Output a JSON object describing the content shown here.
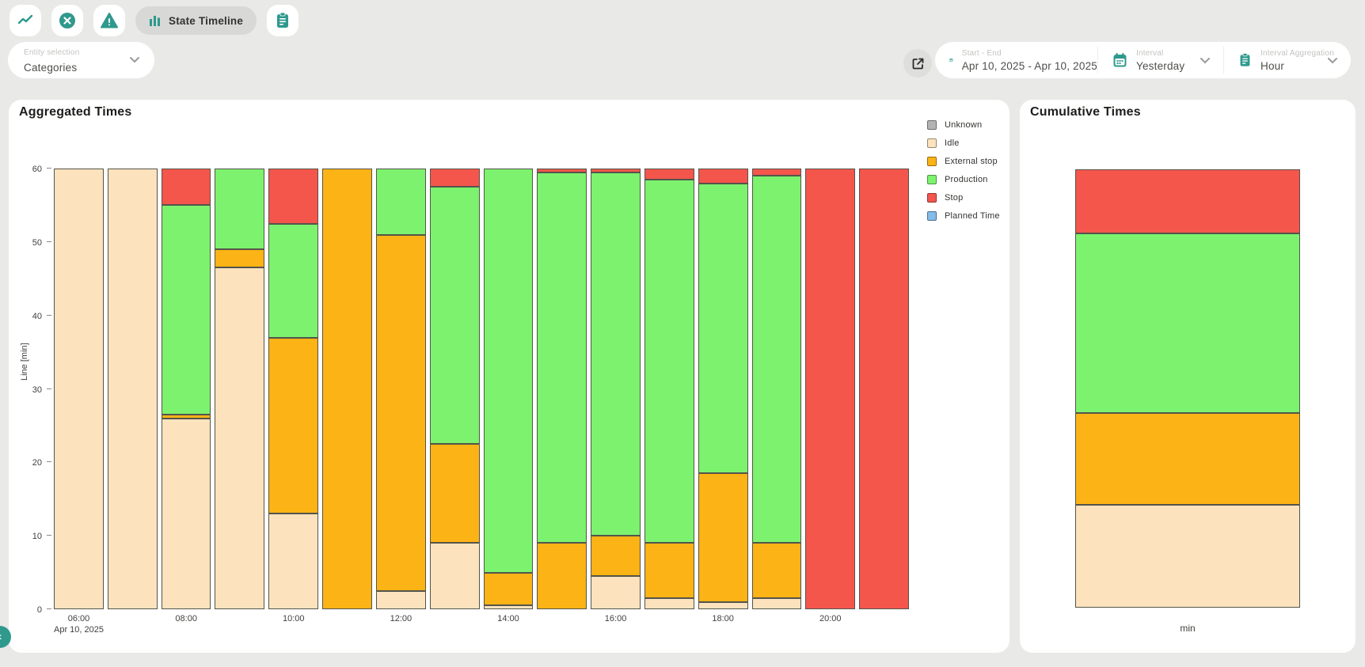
{
  "toolbar": {
    "state_timeline_label": "State Timeline"
  },
  "filters": {
    "entity_selection": {
      "label": "Entity selection",
      "value": "Categories"
    },
    "start_end": {
      "label": "Start - End",
      "value": "Apr 10, 2025 - Apr 10, 2025"
    },
    "interval": {
      "label": "Interval",
      "value": "Yesterday"
    },
    "interval_aggregation": {
      "label": "Interval Aggregation",
      "value": "Hour"
    }
  },
  "panels": {
    "aggregated": {
      "title": "Aggregated Times"
    },
    "cumulative": {
      "title": "Cumulative Times",
      "xlabel": "min"
    }
  },
  "colors": {
    "teal": "#2f998d",
    "unknown": "#b3b3b3",
    "idle": "#fce3bd",
    "external_stop": "#fcb315",
    "production": "#7df26e",
    "stop": "#f4564c",
    "planned_time": "#84bbe9"
  },
  "legend": [
    {
      "label": "Unknown",
      "color": "#b3b3b3"
    },
    {
      "label": "Idle",
      "color": "#fce3bd"
    },
    {
      "label": "External stop",
      "color": "#fcb315"
    },
    {
      "label": "Production",
      "color": "#7df26e"
    },
    {
      "label": "Stop",
      "color": "#f4564c"
    },
    {
      "label": "Planned Time",
      "color": "#84bbe9"
    }
  ],
  "chart_data": [
    {
      "type": "bar",
      "stacked": true,
      "title": "Aggregated Times",
      "ylabel": "Line [min]",
      "ylim": [
        0,
        60
      ],
      "yticks": [
        0,
        10,
        20,
        30,
        40,
        50,
        60
      ],
      "grid": false,
      "legend_position": "right",
      "categories": [
        "06:00",
        "07:00",
        "08:00",
        "09:00",
        "10:00",
        "11:00",
        "12:00",
        "13:00",
        "14:00",
        "15:00",
        "16:00",
        "17:00",
        "18:00",
        "19:00",
        "20:00",
        "21:00"
      ],
      "x_labels": [
        "06:00",
        "",
        "08:00",
        "",
        "10:00",
        "",
        "12:00",
        "",
        "14:00",
        "",
        "16:00",
        "",
        "18:00",
        "",
        "20:00",
        ""
      ],
      "x_sub_label": "Apr 10, 2025",
      "series": [
        {
          "name": "Unknown",
          "color": "#b3b3b3",
          "values": [
            0,
            0,
            0,
            0,
            0,
            0,
            0,
            0,
            0,
            0,
            0,
            0,
            0,
            0,
            0,
            0
          ]
        },
        {
          "name": "Idle",
          "color": "#fce3bd",
          "values": [
            60,
            60,
            26,
            46.5,
            13,
            0,
            2.5,
            9,
            0.5,
            0,
            4.5,
            1.5,
            1,
            1.5,
            0,
            0
          ]
        },
        {
          "name": "External stop",
          "color": "#fcb315",
          "values": [
            0,
            0,
            0.5,
            2.5,
            24,
            60,
            48.5,
            13.5,
            4.5,
            9,
            5.5,
            7.5,
            17.5,
            7.5,
            0,
            0
          ]
        },
        {
          "name": "Production",
          "color": "#7df26e",
          "values": [
            0,
            0,
            28.5,
            11,
            15.5,
            0,
            9,
            35,
            55,
            50.5,
            49.5,
            49.5,
            39.5,
            50,
            0,
            0
          ]
        },
        {
          "name": "Stop",
          "color": "#f4564c",
          "values": [
            0,
            0,
            5,
            0,
            7.5,
            0,
            0,
            2.5,
            0,
            0.5,
            0.5,
            1.5,
            2,
            1,
            60,
            60
          ]
        },
        {
          "name": "Planned Time",
          "color": "#84bbe9",
          "values": [
            0,
            0,
            0,
            0,
            0,
            0,
            0,
            0,
            0,
            0,
            0,
            0,
            0,
            0,
            0,
            0
          ]
        }
      ]
    },
    {
      "type": "bar",
      "stacked": true,
      "title": "Cumulative Times",
      "categories": [
        "min"
      ],
      "total": 960,
      "series": [
        {
          "name": "Unknown",
          "color": "#b3b3b3",
          "values": [
            0
          ]
        },
        {
          "name": "Idle",
          "color": "#fce3bd",
          "values": [
            226
          ]
        },
        {
          "name": "External stop",
          "color": "#fcb315",
          "values": [
            200.5
          ]
        },
        {
          "name": "Production",
          "color": "#7df26e",
          "values": [
            393
          ]
        },
        {
          "name": "Stop",
          "color": "#f4564c",
          "values": [
            140.5
          ]
        },
        {
          "name": "Planned Time",
          "color": "#84bbe9",
          "values": [
            0
          ]
        }
      ]
    }
  ],
  "misc": {
    "collapse_chevron": "‹"
  }
}
